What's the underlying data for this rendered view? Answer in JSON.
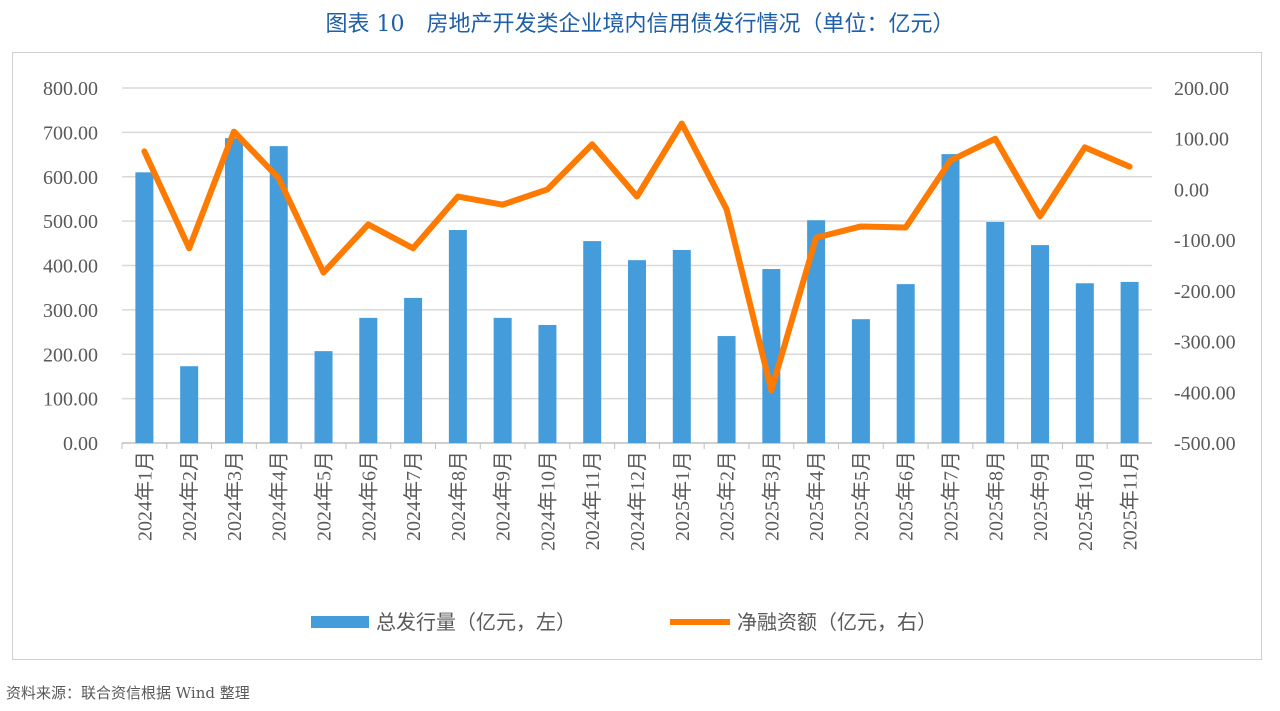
{
  "title": "图表 10　房地产开发类企业境内信用债发行情况（单位：亿元）",
  "source": "资料来源：联合资信根据 Wind 整理",
  "chart_data": {
    "type": "bar+line",
    "categories": [
      "2024年1月",
      "2024年2月",
      "2024年3月",
      "2024年4月",
      "2024年5月",
      "2024年6月",
      "2024年7月",
      "2024年8月",
      "2024年9月",
      "2024年10月",
      "2024年11月",
      "2024年12月",
      "2025年1月",
      "2025年2月",
      "2025年3月",
      "2025年4月",
      "2025年5月",
      "2025年6月",
      "2025年7月",
      "2025年8月",
      "2025年9月",
      "2025年10月",
      "2025年11月"
    ],
    "series": [
      {
        "name": "总发行量（亿元，左）",
        "type": "bar",
        "axis": "left",
        "color": "#449cdb",
        "values": [
          610,
          173,
          687,
          669,
          207,
          282,
          327,
          480,
          282,
          266,
          455,
          412,
          435,
          241,
          392,
          502,
          279,
          358,
          651,
          498,
          446,
          360,
          363
        ]
      },
      {
        "name": "净融资额（亿元，右）",
        "type": "line",
        "axis": "right",
        "color": "#ff7a00",
        "values": [
          75,
          -116,
          114,
          22,
          -164,
          -69,
          -116,
          -14,
          -30,
          0,
          89,
          -14,
          130,
          -39,
          -396,
          -95,
          -73,
          -75,
          57,
          100,
          -53,
          83,
          45
        ]
      }
    ],
    "left_axis": {
      "ylim": [
        0,
        800
      ],
      "ticks": [
        "0.00",
        "100.00",
        "200.00",
        "300.00",
        "400.00",
        "500.00",
        "600.00",
        "700.00",
        "800.00"
      ]
    },
    "right_axis": {
      "ylim": [
        -500,
        200
      ],
      "ticks": [
        "-500.00",
        "-400.00",
        "-300.00",
        "-200.00",
        "-100.00",
        "0.00",
        "100.00",
        "200.00"
      ]
    },
    "grid": true,
    "legend": "bottom"
  }
}
